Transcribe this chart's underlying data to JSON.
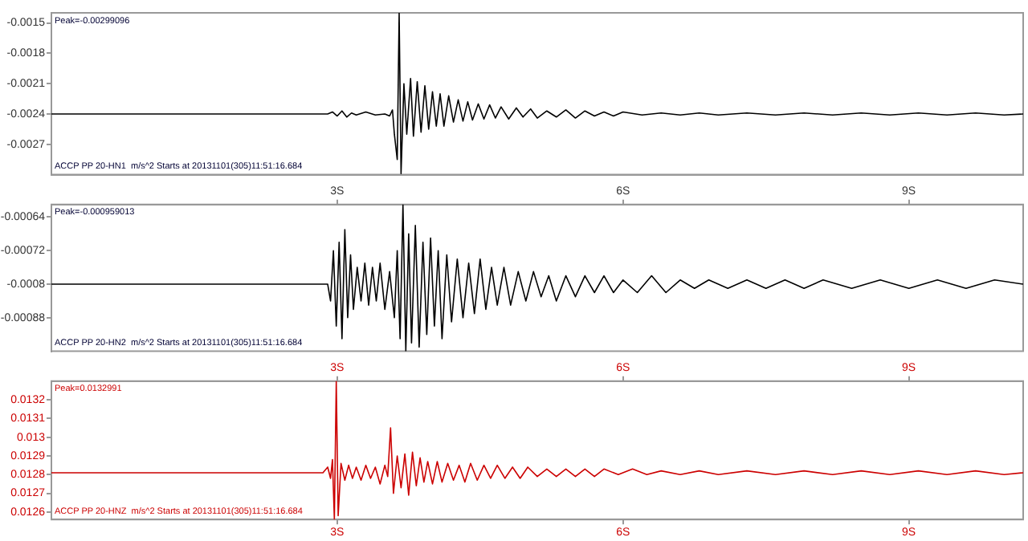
{
  "chart_data": [
    {
      "type": "line",
      "xlim": [
        0,
        10.2
      ],
      "ylim": [
        -0.003,
        -0.0014
      ],
      "yticks": [
        -0.0015,
        -0.0018,
        -0.0021,
        -0.0024,
        -0.0027
      ],
      "tick_labels": "y",
      "legend": false,
      "grid": false,
      "marker": "none",
      "line_style": "solid",
      "annotations": [
        "Peak=-0.00299096",
        "ACCP PP 20-HN1  m/s^2 Starts at 20131101(305)11:51:16.684"
      ],
      "x": [
        0,
        2.9,
        2.95,
        3.0,
        3.05,
        3.1,
        3.15,
        3.2,
        3.3,
        3.4,
        3.5,
        3.55,
        3.58,
        3.6,
        3.63,
        3.65,
        3.67,
        3.7,
        3.73,
        3.77,
        3.8,
        3.84,
        3.88,
        3.92,
        3.96,
        4.0,
        4.04,
        4.08,
        4.12,
        4.17,
        4.22,
        4.27,
        4.32,
        4.37,
        4.42,
        4.48,
        4.54,
        4.6,
        4.66,
        4.72,
        4.8,
        4.88,
        4.95,
        5.03,
        5.1,
        5.2,
        5.3,
        5.4,
        5.5,
        5.6,
        5.7,
        5.8,
        5.9,
        6.0,
        6.2,
        6.4,
        6.6,
        6.8,
        7.0,
        7.3,
        7.6,
        7.9,
        8.2,
        8.5,
        8.8,
        9.1,
        9.4,
        9.7,
        10.0,
        10.2
      ],
      "series": [
        {
          "color": "#000000",
          "values": [
            -0.0024,
            -0.0024,
            -0.00238,
            -0.00242,
            -0.00237,
            -0.00243,
            -0.00239,
            -0.00241,
            -0.00238,
            -0.00241,
            -0.0024,
            -0.00242,
            -0.00236,
            -0.0026,
            -0.00285,
            -0.0014,
            -0.00299,
            -0.0021,
            -0.0026,
            -0.00205,
            -0.00262,
            -0.00208,
            -0.00258,
            -0.00212,
            -0.00255,
            -0.00218,
            -0.00252,
            -0.0022,
            -0.00252,
            -0.00222,
            -0.00248,
            -0.00226,
            -0.00247,
            -0.00228,
            -0.00246,
            -0.0023,
            -0.00245,
            -0.00231,
            -0.00244,
            -0.00233,
            -0.00245,
            -0.00234,
            -0.00243,
            -0.00235,
            -0.00244,
            -0.00237,
            -0.00243,
            -0.00236,
            -0.00244,
            -0.00237,
            -0.00242,
            -0.00238,
            -0.00242,
            -0.00238,
            -0.00241,
            -0.00239,
            -0.00241,
            -0.00239,
            -0.00241,
            -0.00239,
            -0.00241,
            -0.00239,
            -0.00241,
            -0.00239,
            -0.00241,
            -0.00239,
            -0.00241,
            -0.00239,
            -0.00241,
            -0.0024
          ]
        }
      ]
    },
    {
      "type": "line",
      "xlim": [
        0,
        10.2
      ],
      "xticks": [
        {
          "value": 3,
          "label": "3S"
        },
        {
          "value": 6,
          "label": "6S"
        },
        {
          "value": 9,
          "label": "9S"
        }
      ],
      "ylim": [
        -0.00096,
        -0.00061
      ],
      "yticks": [
        -0.00064,
        -0.00072,
        -0.0008,
        -0.00088
      ],
      "legend": false,
      "grid": false,
      "marker": "none",
      "line_style": "solid",
      "annotations": [
        "Peak=-0.000959013",
        "ACCP PP 20-HN2  m/s^2 Starts at 20131101(305)11:51:16.684"
      ],
      "x": [
        0,
        2.9,
        2.93,
        2.96,
        2.99,
        3.02,
        3.05,
        3.08,
        3.11,
        3.14,
        3.17,
        3.21,
        3.25,
        3.29,
        3.33,
        3.37,
        3.41,
        3.45,
        3.5,
        3.55,
        3.6,
        3.63,
        3.66,
        3.69,
        3.72,
        3.75,
        3.78,
        3.82,
        3.86,
        3.9,
        3.94,
        3.98,
        4.02,
        4.06,
        4.1,
        4.15,
        4.2,
        4.26,
        4.32,
        4.38,
        4.44,
        4.5,
        4.56,
        4.62,
        4.68,
        4.75,
        4.82,
        4.9,
        4.98,
        5.06,
        5.14,
        5.22,
        5.3,
        5.4,
        5.5,
        5.6,
        5.7,
        5.8,
        5.9,
        6.0,
        6.15,
        6.3,
        6.45,
        6.6,
        6.75,
        6.9,
        7.1,
        7.3,
        7.5,
        7.7,
        7.9,
        8.1,
        8.4,
        8.7,
        9.0,
        9.3,
        9.6,
        9.9,
        10.2
      ],
      "series": [
        {
          "color": "#000000",
          "values": [
            -0.0008,
            -0.0008,
            -0.00084,
            -0.00072,
            -0.0009,
            -0.0007,
            -0.00093,
            -0.00067,
            -0.00088,
            -0.00073,
            -0.00086,
            -0.00076,
            -0.00084,
            -0.00075,
            -0.00085,
            -0.00076,
            -0.00084,
            -0.00075,
            -0.00086,
            -0.00077,
            -0.00088,
            -0.00072,
            -0.00093,
            -0.00061,
            -0.00096,
            -0.00068,
            -0.00094,
            -0.00066,
            -0.00095,
            -0.0007,
            -0.00092,
            -0.00069,
            -0.0009,
            -0.00072,
            -0.00093,
            -0.00073,
            -0.00089,
            -0.00074,
            -0.00088,
            -0.00075,
            -0.00087,
            -0.00074,
            -0.00086,
            -0.00076,
            -0.00085,
            -0.00076,
            -0.00085,
            -0.00077,
            -0.00084,
            -0.00077,
            -0.00083,
            -0.00078,
            -0.00084,
            -0.00078,
            -0.00083,
            -0.00078,
            -0.00082,
            -0.00078,
            -0.00082,
            -0.00079,
            -0.00082,
            -0.00078,
            -0.00082,
            -0.00079,
            -0.00081,
            -0.00079,
            -0.00081,
            -0.00079,
            -0.00081,
            -0.00079,
            -0.00081,
            -0.00079,
            -0.00081,
            -0.00079,
            -0.00081,
            -0.00079,
            -0.00081,
            -0.00079,
            -0.0008
          ]
        }
      ]
    },
    {
      "type": "line",
      "xlim": [
        0,
        10.2
      ],
      "xticks": [
        {
          "value": 3,
          "label": "3S"
        },
        {
          "value": 6,
          "label": "6S"
        },
        {
          "value": 9,
          "label": "9S"
        }
      ],
      "x2lim": [
        0,
        10.2
      ],
      "x2ticks": [
        {
          "value": 3,
          "label": "3S"
        },
        {
          "value": 6,
          "label": "6S"
        },
        {
          "value": 9,
          "label": "9S"
        }
      ],
      "ylim": [
        0.01256,
        0.0133
      ],
      "yticks": [
        0.0132,
        0.0131,
        0.013,
        0.0129,
        0.0128,
        0.0127,
        0.0126
      ],
      "legend": false,
      "grid": false,
      "marker": "none",
      "line_style": "solid",
      "annotations": [
        "Peak=0.0132991",
        "ACCP PP 20-HNZ  m/s^2 Starts at 20131101(305)11:51:16.684"
      ],
      "x": [
        0,
        2.85,
        2.9,
        2.93,
        2.95,
        2.97,
        2.99,
        3.01,
        3.04,
        3.08,
        3.12,
        3.16,
        3.2,
        3.25,
        3.3,
        3.35,
        3.4,
        3.45,
        3.5,
        3.53,
        3.56,
        3.59,
        3.63,
        3.67,
        3.71,
        3.75,
        3.79,
        3.83,
        3.87,
        3.91,
        3.95,
        4.0,
        4.05,
        4.1,
        4.16,
        4.22,
        4.28,
        4.34,
        4.4,
        4.47,
        4.54,
        4.61,
        4.68,
        4.76,
        4.84,
        4.92,
        5.0,
        5.1,
        5.2,
        5.3,
        5.4,
        5.5,
        5.6,
        5.7,
        5.8,
        5.95,
        6.1,
        6.25,
        6.4,
        6.6,
        6.8,
        7.0,
        7.3,
        7.6,
        7.9,
        8.2,
        8.5,
        8.8,
        9.1,
        9.4,
        9.7,
        10.0,
        10.2
      ],
      "series": [
        {
          "color": "#cc0000",
          "values": [
            0.01281,
            0.01281,
            0.01284,
            0.01278,
            0.01288,
            0.01256,
            0.0133,
            0.01258,
            0.01286,
            0.01277,
            0.01285,
            0.01278,
            0.01284,
            0.01277,
            0.01285,
            0.01278,
            0.01284,
            0.01275,
            0.01285,
            0.01279,
            0.01305,
            0.0127,
            0.0129,
            0.01273,
            0.01291,
            0.01269,
            0.01292,
            0.01274,
            0.01289,
            0.01276,
            0.01287,
            0.01275,
            0.01287,
            0.01276,
            0.01286,
            0.01277,
            0.01285,
            0.01276,
            0.01286,
            0.01277,
            0.01285,
            0.01278,
            0.01285,
            0.01278,
            0.01284,
            0.01278,
            0.01284,
            0.01279,
            0.01283,
            0.01279,
            0.01283,
            0.01279,
            0.01283,
            0.01279,
            0.01283,
            0.0128,
            0.01283,
            0.0128,
            0.01282,
            0.0128,
            0.01282,
            0.0128,
            0.01282,
            0.0128,
            0.01282,
            0.0128,
            0.01282,
            0.0128,
            0.01282,
            0.0128,
            0.01282,
            0.0128,
            0.01281
          ]
        }
      ]
    }
  ]
}
